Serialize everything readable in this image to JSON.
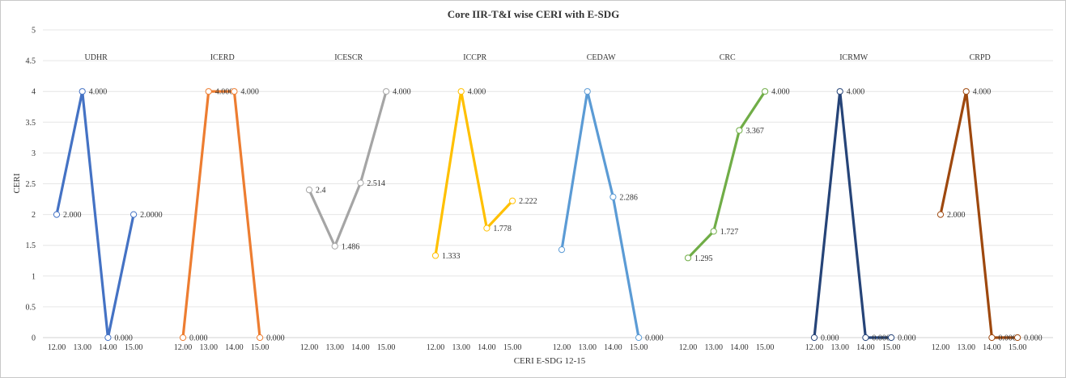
{
  "chart_data": {
    "type": "line",
    "title": "Core IIR-T&I wise CERI  with E-SDG",
    "xlabel": "CERI E-SDG 12-15",
    "ylabel": "CERI",
    "ylim": [
      0,
      5
    ],
    "y_ticks": [
      "0",
      "0.5",
      "1",
      "1.5",
      "2",
      "2.5",
      "3",
      "3.5",
      "4",
      "4.5",
      "5"
    ],
    "categories": [
      "12.00",
      "13.00",
      "14.00",
      "15.00"
    ],
    "grid": true,
    "legend": "none",
    "series": [
      {
        "name": "UDHR",
        "color": "#4472C4",
        "values": [
          2.0,
          4.0,
          0.0,
          2.0
        ],
        "labels": [
          "2.000",
          "4.000",
          "0.000",
          "2.0000"
        ]
      },
      {
        "name": "ICERD",
        "color": "#ED7D31",
        "values": [
          0.0,
          4.0,
          4.0,
          0.0
        ],
        "labels": [
          "0.000",
          "4.000",
          "4.000",
          "0.000"
        ]
      },
      {
        "name": "ICESCR",
        "color": "#A5A5A5",
        "values": [
          2.4,
          1.486,
          2.514,
          4.0
        ],
        "labels": [
          "2.4",
          "1.486",
          "2.514",
          "4.000"
        ]
      },
      {
        "name": "ICCPR",
        "color": "#FFC000",
        "values": [
          1.333,
          4.0,
          1.778,
          2.222
        ],
        "labels": [
          "1.333",
          "4.000",
          "1.778",
          "2.222"
        ]
      },
      {
        "name": "CEDAW",
        "color": "#5B9BD5",
        "values": [
          1.429,
          4.0,
          2.286,
          0.0
        ],
        "labels": [
          "",
          "",
          "2.286",
          "0.000"
        ]
      },
      {
        "name": "CRC",
        "color": "#70AD47",
        "values": [
          1.295,
          1.727,
          3.367,
          4.0
        ],
        "labels": [
          "1.295",
          "1.727",
          "3.367",
          "4.000"
        ]
      },
      {
        "name": "ICRMW",
        "color": "#264478",
        "values": [
          0.0,
          4.0,
          0.0,
          0.0
        ],
        "labels": [
          "0.000",
          "4.000",
          "0.000",
          "0.000"
        ]
      },
      {
        "name": "CRPD",
        "color": "#9E480E",
        "values": [
          2.0,
          4.0,
          0.0,
          0.0
        ],
        "labels": [
          "2.000",
          "4.000",
          "0.000",
          "0.000"
        ]
      }
    ]
  }
}
